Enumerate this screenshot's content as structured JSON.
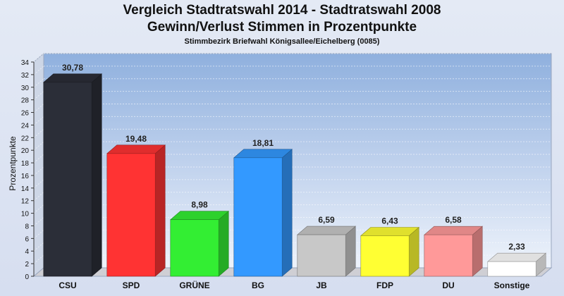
{
  "header": {
    "title_line1": "Vergleich Stadtratswahl 2014 - Stadtratswahl 2008",
    "title_line2": "Gewinn/Verlust Stimmen in Prozentpunkte",
    "subtitle": "Stimmbezirk Briefwahl Königsallee/Eichelberg (0085)"
  },
  "chart_data": {
    "type": "bar",
    "title": "Vergleich Stadtratswahl 2014 - Stadtratswahl 2008 / Gewinn/Verlust Stimmen in Prozentpunkte",
    "subtitle": "Stimmbezirk Briefwahl Königsallee/Eichelberg (0085)",
    "xlabel": "",
    "ylabel": "Prozentpunkte",
    "ylim": [
      0,
      34
    ],
    "ytick_step": 2,
    "grid": true,
    "categories": [
      "CSU",
      "SPD",
      "GRÜNE",
      "BG",
      "JB",
      "FDP",
      "DU",
      "Sonstige"
    ],
    "values": [
      30.78,
      19.48,
      8.98,
      18.81,
      6.59,
      6.43,
      6.58,
      2.33
    ],
    "value_labels": [
      "30,78",
      "19,48",
      "8,98",
      "18,81",
      "6,59",
      "6,43",
      "6,58",
      "2,33"
    ],
    "colors": [
      "#2b2e38",
      "#ff3333",
      "#33ee33",
      "#3399ff",
      "#c8c8c8",
      "#ffff33",
      "#ff9999",
      "#ffffff"
    ]
  }
}
